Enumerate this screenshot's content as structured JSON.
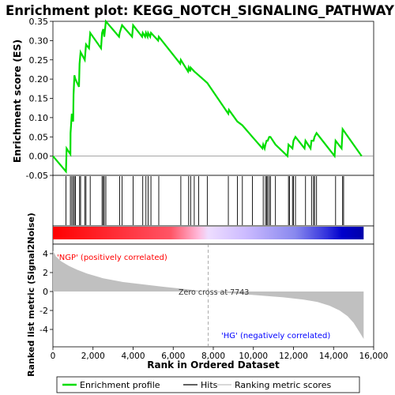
{
  "chart_data": {
    "type": "line",
    "title": "Enrichment plot: KEGG_NOTCH_SIGNALING_PATHWAY",
    "ylabel_top": "Enrichment score (ES)",
    "ylabel_bottom": "Ranked list metric (Signal2Noise)",
    "xlabel": "Rank in Ordered Dataset",
    "xlim": [
      0,
      16000
    ],
    "es_ylim": [
      -0.05,
      0.35
    ],
    "es_yticks": [
      "0.35",
      "0.30",
      "0.25",
      "0.20",
      "0.15",
      "0.10",
      "0.05",
      "0.00",
      "-0.05"
    ],
    "es_ytick_values": [
      0.35,
      0.3,
      0.25,
      0.2,
      0.15,
      0.1,
      0.05,
      0.0,
      -0.05
    ],
    "metric_ylim": [
      -5,
      5
    ],
    "metric_yticks": [
      "4",
      "2",
      "0",
      "-2",
      "-4"
    ],
    "metric_ytick_values": [
      4,
      2,
      0,
      -2,
      -4
    ],
    "xticks": [
      "0",
      "2,000",
      "4,000",
      "6,000",
      "8,000",
      "10,000",
      "12,000",
      "14,000",
      "16,000"
    ],
    "xtick_values": [
      0,
      2000,
      4000,
      6000,
      8000,
      10000,
      12000,
      14000,
      16000
    ],
    "label_pos": "'NGP' (positively correlated)",
    "label_neg": "'HG' (negatively correlated)",
    "zero_cross_label": "Zero cross at 7743",
    "zero_cross": 7743,
    "n_genes": 15500,
    "legend": [
      "Enrichment profile",
      "Hits",
      "Ranking metric scores"
    ],
    "colors": {
      "es_line": "#00dd00",
      "metric_fill": "#c0c0c0",
      "pos": "#ff0000",
      "neg": "#0000ff",
      "pos_label": "#ff0000",
      "neg_label": "#0000ff"
    },
    "hits": [
      650,
      870,
      940,
      1010,
      1070,
      1120,
      1330,
      1380,
      1590,
      1650,
      1860,
      2450,
      2510,
      2560,
      2640,
      3330,
      3450,
      4000,
      4480,
      4640,
      4750,
      4890,
      5280,
      6380,
      6770,
      6870,
      7050,
      7270,
      7700,
      8750,
      9200,
      9450,
      9950,
      10490,
      10600,
      10660,
      10710,
      10790,
      10850,
      11100,
      11750,
      11800,
      11950,
      12000,
      12100,
      12600,
      12900,
      13000,
      13050,
      13150,
      14100,
      14450,
      14500
    ],
    "es_points": [
      [
        0,
        0.0
      ],
      [
        650,
        -0.04
      ],
      [
        680,
        0.02
      ],
      [
        870,
        0.005
      ],
      [
        880,
        0.06
      ],
      [
        940,
        0.11
      ],
      [
        1010,
        0.09
      ],
      [
        1030,
        0.16
      ],
      [
        1070,
        0.21
      ],
      [
        1120,
        0.2
      ],
      [
        1300,
        0.18
      ],
      [
        1330,
        0.24
      ],
      [
        1380,
        0.27
      ],
      [
        1590,
        0.25
      ],
      [
        1650,
        0.29
      ],
      [
        1800,
        0.28
      ],
      [
        1860,
        0.32
      ],
      [
        2400,
        0.28
      ],
      [
        2450,
        0.32
      ],
      [
        2510,
        0.33
      ],
      [
        2560,
        0.31
      ],
      [
        2640,
        0.35
      ],
      [
        3300,
        0.31
      ],
      [
        3330,
        0.32
      ],
      [
        3450,
        0.34
      ],
      [
        3950,
        0.31
      ],
      [
        4000,
        0.34
      ],
      [
        4450,
        0.31
      ],
      [
        4480,
        0.32
      ],
      [
        4600,
        0.31
      ],
      [
        4640,
        0.32
      ],
      [
        4720,
        0.31
      ],
      [
        4750,
        0.32
      ],
      [
        4850,
        0.31
      ],
      [
        4890,
        0.32
      ],
      [
        5250,
        0.3
      ],
      [
        5280,
        0.31
      ],
      [
        6350,
        0.24
      ],
      [
        6380,
        0.25
      ],
      [
        6740,
        0.22
      ],
      [
        6770,
        0.23
      ],
      [
        6850,
        0.22
      ],
      [
        6870,
        0.23
      ],
      [
        7050,
        0.22
      ],
      [
        7270,
        0.21
      ],
      [
        7700,
        0.19
      ],
      [
        8750,
        0.11
      ],
      [
        8780,
        0.12
      ],
      [
        9200,
        0.09
      ],
      [
        9450,
        0.08
      ],
      [
        9950,
        0.05
      ],
      [
        10450,
        0.02
      ],
      [
        10490,
        0.03
      ],
      [
        10560,
        0.02
      ],
      [
        10600,
        0.03
      ],
      [
        10660,
        0.04
      ],
      [
        10710,
        0.04
      ],
      [
        10790,
        0.05
      ],
      [
        10850,
        0.05
      ],
      [
        11100,
        0.03
      ],
      [
        11700,
        0.0
      ],
      [
        11750,
        0.03
      ],
      [
        11950,
        0.02
      ],
      [
        12000,
        0.04
      ],
      [
        12100,
        0.05
      ],
      [
        12550,
        0.02
      ],
      [
        12600,
        0.04
      ],
      [
        12850,
        0.02
      ],
      [
        12900,
        0.04
      ],
      [
        13000,
        0.04
      ],
      [
        13050,
        0.05
      ],
      [
        13150,
        0.06
      ],
      [
        14050,
        0.0
      ],
      [
        14100,
        0.04
      ],
      [
        14400,
        0.02
      ],
      [
        14450,
        0.07
      ],
      [
        15400,
        0.0
      ]
    ],
    "metric_points": [
      [
        0,
        4.3
      ],
      [
        150,
        3.7
      ],
      [
        400,
        3.2
      ],
      [
        800,
        2.7
      ],
      [
        1200,
        2.3
      ],
      [
        1700,
        1.9
      ],
      [
        2500,
        1.4
      ],
      [
        3500,
        1.0
      ],
      [
        4500,
        0.75
      ],
      [
        5500,
        0.5
      ],
      [
        6500,
        0.28
      ],
      [
        7200,
        0.1
      ],
      [
        7743,
        0.0
      ],
      [
        8500,
        -0.12
      ],
      [
        9500,
        -0.28
      ],
      [
        10500,
        -0.45
      ],
      [
        11500,
        -0.62
      ],
      [
        12500,
        -0.85
      ],
      [
        13200,
        -1.1
      ],
      [
        13800,
        -1.5
      ],
      [
        14300,
        -2.0
      ],
      [
        14700,
        -2.6
      ],
      [
        15000,
        -3.3
      ],
      [
        15300,
        -4.3
      ],
      [
        15500,
        -5.0
      ]
    ]
  }
}
